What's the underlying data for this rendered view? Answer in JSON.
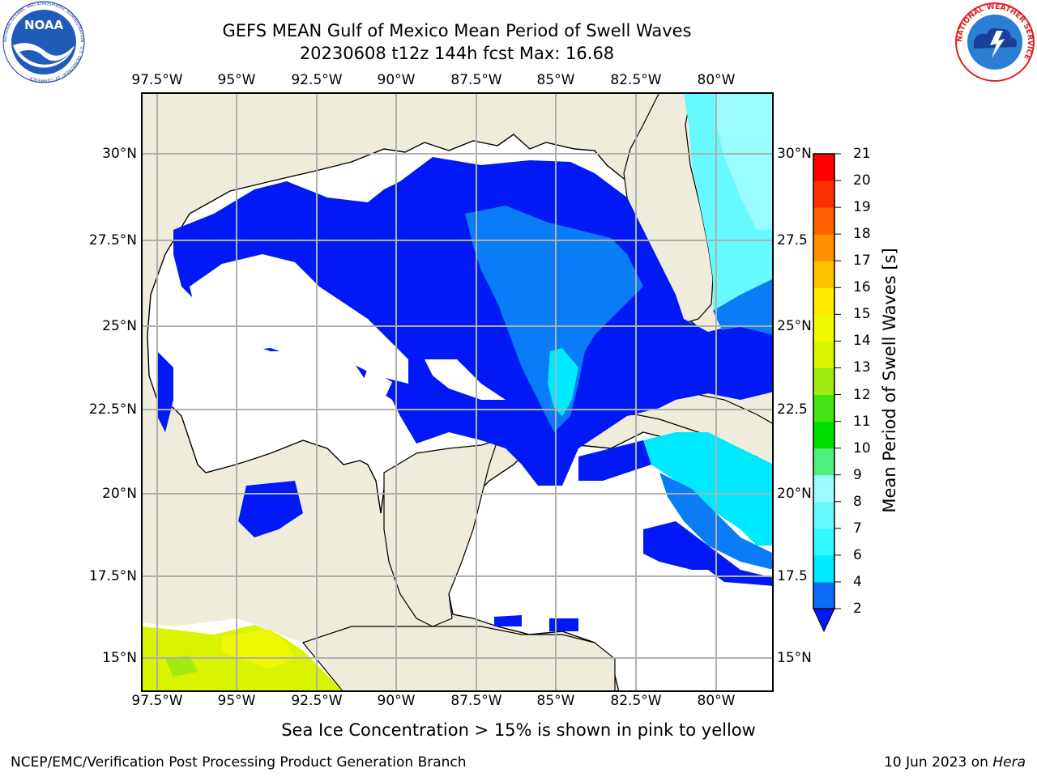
{
  "title_line1": "GEFS MEAN Gulf of Mexico Mean Period of Swell Waves",
  "title_line2": "20230608 t12z 144h fcst   Max: 16.68",
  "lon_labels": [
    "97.5°W",
    "95°W",
    "92.5°W",
    "90°W",
    "87.5°W",
    "85°W",
    "82.5°W",
    "80°W"
  ],
  "lat_labels": [
    "30°N",
    "27.5°N",
    "25°N",
    "22.5°N",
    "20°N",
    "17.5°N",
    "15°N"
  ],
  "lat_labels_right": [
    "30°N",
    "27.5",
    "25°N",
    "22.5",
    "20°N",
    "17.5",
    "15°N"
  ],
  "colorbar": {
    "label": "Mean Period of Swell Waves [s]",
    "ticks": [
      "2",
      "4",
      "6",
      "7",
      "8",
      "9",
      "10",
      "11",
      "12",
      "13",
      "14",
      "15",
      "16",
      "17",
      "18",
      "19",
      "20",
      "21"
    ],
    "colors": [
      "#0a6cf5",
      "#00eaff",
      "#33f7ff",
      "#66faff",
      "#99fcff",
      "#4cf07a",
      "#00e000",
      "#44e414",
      "#a0ec10",
      "#d8f400",
      "#f0f800",
      "#ffea00",
      "#ffc000",
      "#ff9000",
      "#ff6000",
      "#ff3000",
      "#ff0000"
    ],
    "extend_color": "#0019f5"
  },
  "map_colors": {
    "land": "#efecdc",
    "ocean_lowest": "#0019f5",
    "ocean_2_4": "#0a7cf5",
    "ocean_4_6": "#00eaff",
    "ocean_6_8": "#66faff",
    "ocean_8_9": "#99fcff",
    "ice": "#d8f400",
    "grid": "#b0b0b0"
  },
  "footnote": "Sea Ice Concentration > 15% is shown in pink to yellow",
  "credit": "NCEP/EMC/Verification Post Processing Product Generation Branch",
  "date_prefix": "10 Jun 2023 on ",
  "date_machine": "Hera",
  "logos": {
    "left": {
      "name": "NOAA",
      "ring_text": "NATIONAL OCEANIC AND ATMOSPHERIC ADMINISTRATION · U.S. DEPARTMENT OF COMMERCE"
    },
    "right": {
      "name": "National Weather Service",
      "ring_text": "NATIONAL WEATHER SERVICE"
    }
  }
}
